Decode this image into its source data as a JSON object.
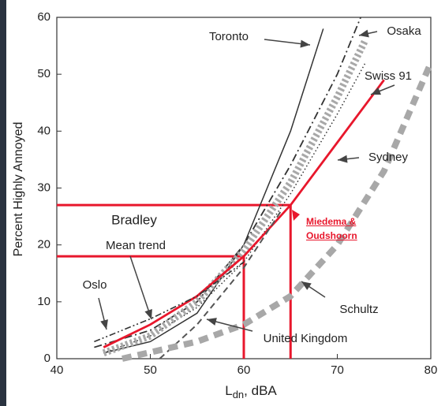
{
  "chart_data": {
    "type": "line",
    "y_label": "Percent Highly Annoyed",
    "x_label": {
      "main": "L",
      "sub": "dn",
      "rest": ", dBA"
    },
    "xlim": [
      40,
      80
    ],
    "xticks": [
      40,
      50,
      60,
      70,
      80
    ],
    "ylim": [
      0,
      60
    ],
    "yticks": [
      0,
      10,
      20,
      30,
      40,
      50,
      60
    ],
    "series": [
      {
        "name": "Toronto",
        "color": "#333333",
        "style": "solid",
        "x": [
          45,
          50,
          55,
          60,
          65,
          68.5
        ],
        "values": [
          1,
          3,
          8,
          20,
          40,
          58
        ]
      },
      {
        "name": "Osaka",
        "color": "#333333",
        "style": "dashdot",
        "x": [
          44,
          50,
          55,
          60,
          65,
          70,
          72.5
        ],
        "values": [
          2,
          5,
          10,
          20,
          34,
          50,
          60
        ]
      },
      {
        "name": "Swiss 91",
        "color": "#333333",
        "style": "dotted",
        "x": [
          45,
          50,
          55,
          60,
          65,
          70,
          73
        ],
        "values": [
          1,
          4,
          9,
          17,
          29,
          43,
          52
        ]
      },
      {
        "name": "Sydney",
        "color": "#a8a8a8",
        "style": "thick-dotted",
        "x": [
          45,
          50,
          55,
          60,
          65,
          70,
          73
        ],
        "values": [
          1,
          4,
          10,
          19,
          31,
          46,
          56
        ]
      },
      {
        "name": "Miedema & Oudshoorn",
        "color": "#e8172c",
        "style": "thick-solid",
        "x": [
          45,
          50,
          55,
          60,
          65,
          70,
          75
        ],
        "values": [
          2,
          6,
          11,
          18,
          27,
          38,
          49
        ]
      },
      {
        "name": "Schultz",
        "color": "#555555",
        "style": "dashed",
        "x": [
          51,
          55,
          60,
          64
        ],
        "values": [
          0,
          6,
          16,
          26
        ]
      },
      {
        "name": "United Kingdom",
        "color": "#a8a8a8",
        "style": "thick-dashed",
        "x": [
          47,
          55,
          60,
          65,
          70,
          75,
          80
        ],
        "values": [
          0,
          3,
          6,
          11,
          20,
          33,
          52
        ]
      },
      {
        "name": "Oslo",
        "color": "#333333",
        "style": "dashdotdot",
        "x": [
          44,
          50,
          55,
          60
        ],
        "values": [
          3,
          7,
          11,
          17
        ]
      }
    ],
    "annotations": [
      "Bradley",
      "Mean trend"
    ],
    "reference_lines": {
      "color": "#e8172c",
      "points": [
        {
          "x": 65,
          "y": 27
        },
        {
          "x": 60,
          "y": 18
        }
      ]
    }
  }
}
